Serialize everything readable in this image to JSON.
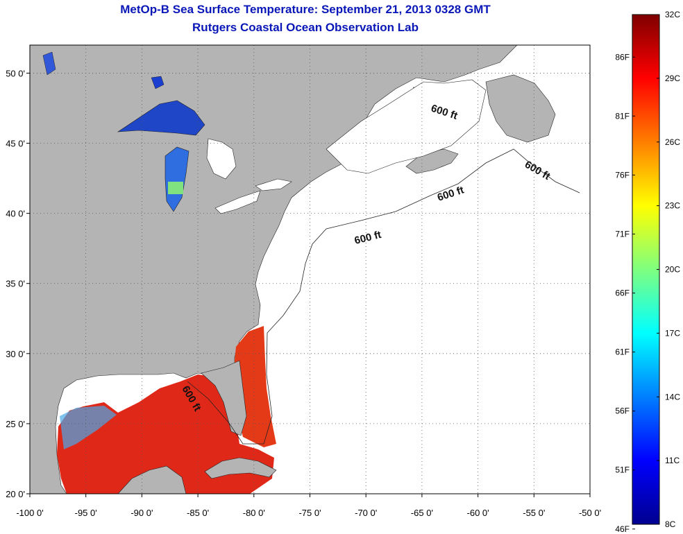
{
  "title": "MetOp-B Sea Surface Temperature:  September 21, 2013 0328 GMT",
  "subtitle": "Rutgers Coastal Ocean Observation Lab",
  "map": {
    "lon_range": [
      -100,
      -50
    ],
    "lat_range": [
      20,
      52
    ],
    "x_ticks": [
      {
        "lon": -100,
        "label": "-100 0'"
      },
      {
        "lon": -95,
        "label": "-95 0'"
      },
      {
        "lon": -90,
        "label": "-90 0'"
      },
      {
        "lon": -85,
        "label": "-85 0'"
      },
      {
        "lon": -80,
        "label": "-80 0'"
      },
      {
        "lon": -75,
        "label": "-75 0'"
      },
      {
        "lon": -70,
        "label": "-70 0'"
      },
      {
        "lon": -65,
        "label": "-65 0'"
      },
      {
        "lon": -60,
        "label": "-60 0'"
      },
      {
        "lon": -55,
        "label": "-55 0'"
      },
      {
        "lon": -50,
        "label": "-50 0'"
      }
    ],
    "y_ticks": [
      {
        "lat": 50,
        "label": "50 0'"
      },
      {
        "lat": 45,
        "label": "45 0'"
      },
      {
        "lat": 40,
        "label": "40 0'"
      },
      {
        "lat": 35,
        "label": "35 0'"
      },
      {
        "lat": 30,
        "label": "30 0'"
      },
      {
        "lat": 25,
        "label": "25 0'"
      },
      {
        "lat": 20,
        "label": "20 0'"
      }
    ],
    "grid": true,
    "contour_labels": [
      "600 ft",
      "600 ft",
      "600 ft",
      "600 ft",
      "600 ft"
    ],
    "colors": {
      "land": "#b4b4b4",
      "no_data": "#ffffff",
      "grid": "#555555"
    }
  },
  "colorbar": {
    "min_c": 8,
    "max_c": 32,
    "celsius_labels": [
      "32C",
      "29C",
      "26C",
      "23C",
      "20C",
      "17C",
      "14C",
      "11C",
      "8C"
    ],
    "fahrenheit_labels": [
      "86F",
      "81F",
      "76F",
      "71F",
      "66F",
      "61F",
      "56F",
      "51F",
      "46F"
    ],
    "colormap": [
      "#7f0000",
      "#ff0000",
      "#ff7f00",
      "#ffff00",
      "#7fff7f",
      "#00ffff",
      "#007fff",
      "#0000ff",
      "#00008f"
    ]
  }
}
